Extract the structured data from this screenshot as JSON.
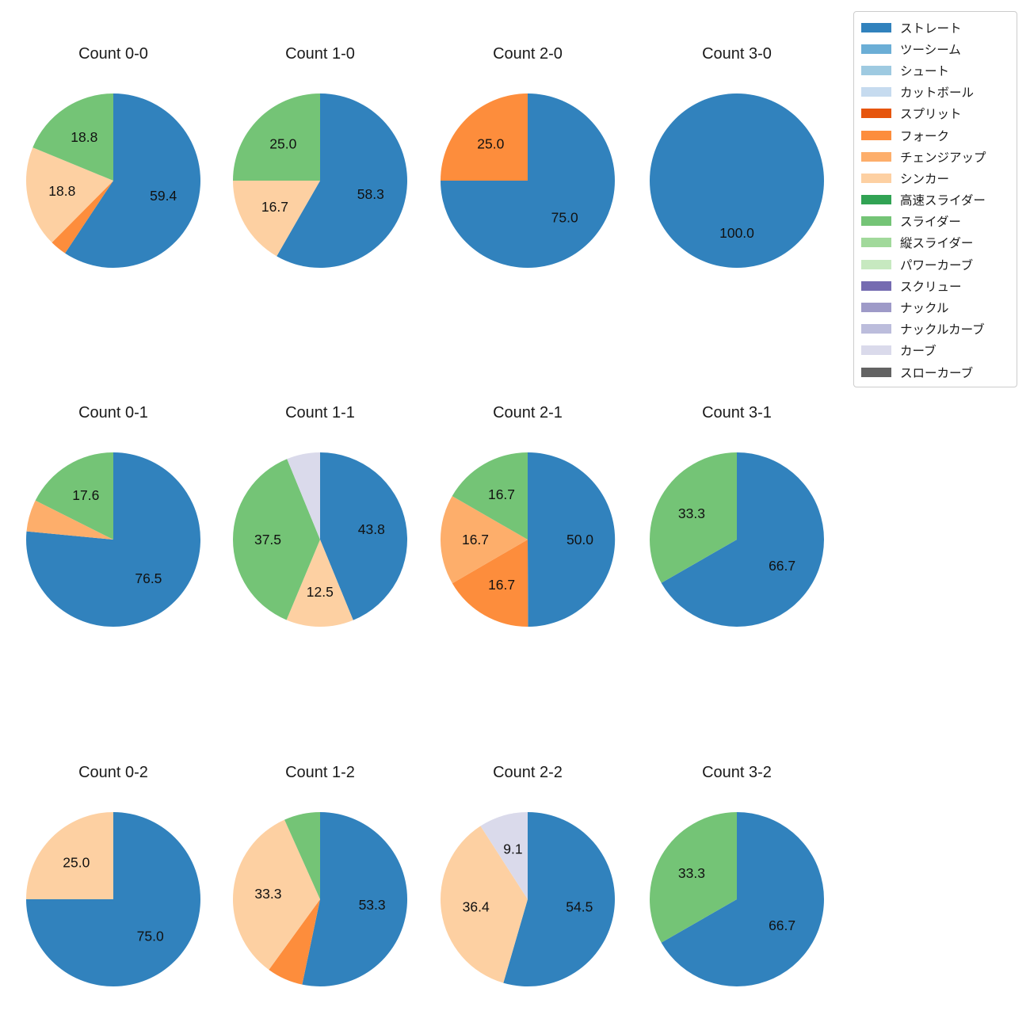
{
  "legend": {
    "position": "upper right",
    "items": [
      {
        "label": "ストレート",
        "color": "#3182bd"
      },
      {
        "label": "ツーシーム",
        "color": "#6baed6"
      },
      {
        "label": "シュート",
        "color": "#9ecae1"
      },
      {
        "label": "カットボール",
        "color": "#c6dbef"
      },
      {
        "label": "スプリット",
        "color": "#e6550d"
      },
      {
        "label": "フォーク",
        "color": "#fd8d3c"
      },
      {
        "label": "チェンジアップ",
        "color": "#fdae6b"
      },
      {
        "label": "シンカー",
        "color": "#fdd0a2"
      },
      {
        "label": "高速スライダー",
        "color": "#31a354"
      },
      {
        "label": "スライダー",
        "color": "#74c476"
      },
      {
        "label": "縦スライダー",
        "color": "#a1d99b"
      },
      {
        "label": "パワーカーブ",
        "color": "#c7e9c0"
      },
      {
        "label": "スクリュー",
        "color": "#756bb1"
      },
      {
        "label": "ナックル",
        "color": "#9e9ac8"
      },
      {
        "label": "ナックルカーブ",
        "color": "#bcbddc"
      },
      {
        "label": "カーブ",
        "color": "#dadaeb"
      },
      {
        "label": "スローカーブ",
        "color": "#636363"
      }
    ]
  },
  "chart_style": {
    "start_angle_deg": 90,
    "direction": "clockwise",
    "pct_distance": 0.6,
    "grid": false
  },
  "chart_data": [
    {
      "type": "pie",
      "title": "Count 0-0",
      "slices": [
        {
          "label": "ストレート",
          "value": 59.4,
          "pct_label": "59.4"
        },
        {
          "label": "フォーク",
          "value": 3.1,
          "pct_label": ""
        },
        {
          "label": "シンカー",
          "value": 18.8,
          "pct_label": "18.8"
        },
        {
          "label": "スライダー",
          "value": 18.8,
          "pct_label": "18.8"
        }
      ]
    },
    {
      "type": "pie",
      "title": "Count 1-0",
      "slices": [
        {
          "label": "ストレート",
          "value": 58.3,
          "pct_label": "58.3"
        },
        {
          "label": "シンカー",
          "value": 16.7,
          "pct_label": "16.7"
        },
        {
          "label": "スライダー",
          "value": 25.0,
          "pct_label": "25.0"
        }
      ]
    },
    {
      "type": "pie",
      "title": "Count 2-0",
      "slices": [
        {
          "label": "ストレート",
          "value": 75.0,
          "pct_label": "75.0"
        },
        {
          "label": "フォーク",
          "value": 25.0,
          "pct_label": "25.0"
        }
      ]
    },
    {
      "type": "pie",
      "title": "Count 3-0",
      "slices": [
        {
          "label": "ストレート",
          "value": 100.0,
          "pct_label": "100.0"
        }
      ]
    },
    {
      "type": "pie",
      "title": "Count 0-1",
      "slices": [
        {
          "label": "ストレート",
          "value": 76.5,
          "pct_label": "76.5"
        },
        {
          "label": "チェンジアップ",
          "value": 5.9,
          "pct_label": ""
        },
        {
          "label": "スライダー",
          "value": 17.6,
          "pct_label": "17.6"
        }
      ]
    },
    {
      "type": "pie",
      "title": "Count 1-1",
      "slices": [
        {
          "label": "ストレート",
          "value": 43.8,
          "pct_label": "43.8"
        },
        {
          "label": "シンカー",
          "value": 12.5,
          "pct_label": "12.5"
        },
        {
          "label": "スライダー",
          "value": 37.5,
          "pct_label": "37.5"
        },
        {
          "label": "カーブ",
          "value": 6.2,
          "pct_label": ""
        }
      ]
    },
    {
      "type": "pie",
      "title": "Count 2-1",
      "slices": [
        {
          "label": "ストレート",
          "value": 50.0,
          "pct_label": "50.0"
        },
        {
          "label": "フォーク",
          "value": 16.7,
          "pct_label": "16.7"
        },
        {
          "label": "チェンジアップ",
          "value": 16.7,
          "pct_label": "16.7"
        },
        {
          "label": "スライダー",
          "value": 16.7,
          "pct_label": "16.7"
        }
      ]
    },
    {
      "type": "pie",
      "title": "Count 3-1",
      "slices": [
        {
          "label": "ストレート",
          "value": 66.7,
          "pct_label": "66.7"
        },
        {
          "label": "スライダー",
          "value": 33.3,
          "pct_label": "33.3"
        }
      ]
    },
    {
      "type": "pie",
      "title": "Count 0-2",
      "slices": [
        {
          "label": "ストレート",
          "value": 75.0,
          "pct_label": "75.0"
        },
        {
          "label": "シンカー",
          "value": 25.0,
          "pct_label": "25.0"
        }
      ]
    },
    {
      "type": "pie",
      "title": "Count 1-2",
      "slices": [
        {
          "label": "ストレート",
          "value": 53.3,
          "pct_label": "53.3"
        },
        {
          "label": "フォーク",
          "value": 6.7,
          "pct_label": ""
        },
        {
          "label": "シンカー",
          "value": 33.3,
          "pct_label": "33.3"
        },
        {
          "label": "スライダー",
          "value": 6.7,
          "pct_label": ""
        }
      ]
    },
    {
      "type": "pie",
      "title": "Count 2-2",
      "slices": [
        {
          "label": "ストレート",
          "value": 54.5,
          "pct_label": "54.5"
        },
        {
          "label": "シンカー",
          "value": 36.4,
          "pct_label": "36.4"
        },
        {
          "label": "カーブ",
          "value": 9.1,
          "pct_label": "9.1"
        }
      ]
    },
    {
      "type": "pie",
      "title": "Count 3-2",
      "slices": [
        {
          "label": "ストレート",
          "value": 66.7,
          "pct_label": "66.7"
        },
        {
          "label": "スライダー",
          "value": 33.3,
          "pct_label": "33.3"
        }
      ]
    }
  ]
}
